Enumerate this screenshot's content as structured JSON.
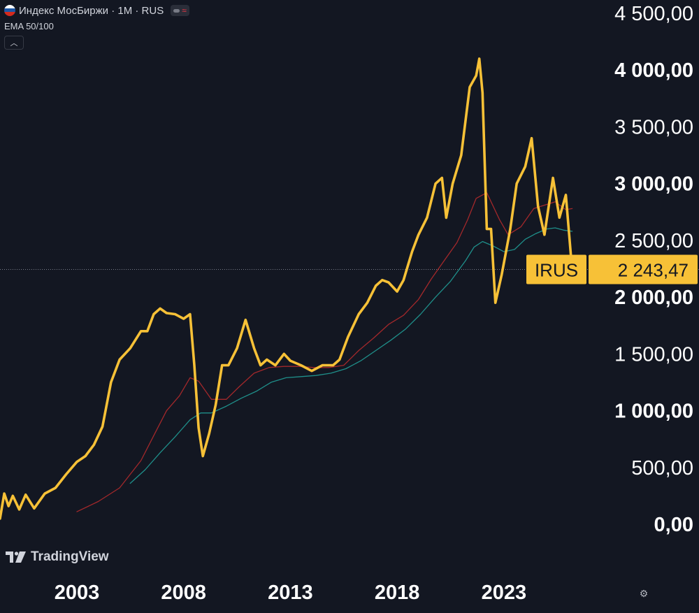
{
  "header": {
    "title": "Индекс МосБиржи · 1M · RUS",
    "indicator": "EMA 50/100",
    "collapse_icon": "chevron-up-icon"
  },
  "watermark": {
    "text": "TradingView"
  },
  "price_label": {
    "ticker": "IRUS",
    "value": "2 243,47"
  },
  "colors": {
    "background": "#131722",
    "price_line": "#f7c137",
    "ema50": "#a3282b",
    "ema100": "#1f8f8a",
    "label_bg": "#f7c137",
    "label_text": "#131722",
    "axis_text": "#ffffff"
  },
  "chart_data": {
    "type": "line",
    "title": "",
    "xlabel": "",
    "ylabel": "",
    "ylim": [
      0,
      4500
    ],
    "xlim": [
      1999.4,
      2026.9
    ],
    "x_ticks": [
      {
        "value": 2003,
        "label": "2003"
      },
      {
        "value": 2008,
        "label": "2008"
      },
      {
        "value": 2013,
        "label": "2013"
      },
      {
        "value": 2018,
        "label": "2018"
      },
      {
        "value": 2023,
        "label": "2023"
      }
    ],
    "y_ticks": [
      {
        "value": 4500,
        "label": "4 500,00"
      },
      {
        "value": 4000,
        "label": "4 000,00"
      },
      {
        "value": 3500,
        "label": "3 500,00"
      },
      {
        "value": 3000,
        "label": "3 000,00"
      },
      {
        "value": 2500,
        "label": "2 500,00"
      },
      {
        "value": 2000,
        "label": "2 000,00"
      },
      {
        "value": 1500,
        "label": "1 500,00"
      },
      {
        "value": 1000,
        "label": "1 000,00"
      },
      {
        "value": 500,
        "label": "500,00"
      },
      {
        "value": 0,
        "label": "0,00"
      }
    ],
    "current_price": 2243.47,
    "series": [
      {
        "role": "price",
        "x": [
          1999.4,
          1999.6,
          1999.8,
          2000.0,
          2000.3,
          2000.6,
          2001.0,
          2001.5,
          2002.0,
          2002.5,
          2003.0,
          2003.4,
          2003.8,
          2004.2,
          2004.6,
          2005.0,
          2005.5,
          2006.0,
          2006.3,
          2006.6,
          2006.9,
          2007.2,
          2007.6,
          2008.0,
          2008.3,
          2008.5,
          2008.7,
          2008.9,
          2009.2,
          2009.5,
          2009.8,
          2010.1,
          2010.5,
          2010.9,
          2011.3,
          2011.6,
          2011.9,
          2012.3,
          2012.7,
          2013.0,
          2013.5,
          2014.0,
          2014.5,
          2015.0,
          2015.3,
          2015.7,
          2016.2,
          2016.6,
          2017.0,
          2017.3,
          2017.6,
          2018.0,
          2018.3,
          2018.7,
          2019.0,
          2019.4,
          2019.8,
          2020.1,
          2020.3,
          2020.6,
          2021.0,
          2021.4,
          2021.7,
          2021.85,
          2022.0,
          2022.2,
          2022.4,
          2022.6,
          2022.9,
          2023.3,
          2023.6,
          2024.0,
          2024.3,
          2024.6,
          2024.9,
          2025.3,
          2025.6,
          2025.9,
          2026.2
        ],
        "y": [
          50,
          270,
          160,
          250,
          130,
          260,
          140,
          270,
          320,
          440,
          550,
          600,
          700,
          860,
          1250,
          1450,
          1550,
          1700,
          1700,
          1850,
          1900,
          1860,
          1850,
          1810,
          1850,
          1400,
          850,
          600,
          800,
          1050,
          1400,
          1400,
          1550,
          1800,
          1550,
          1400,
          1450,
          1400,
          1500,
          1440,
          1400,
          1350,
          1400,
          1400,
          1450,
          1650,
          1850,
          1950,
          2100,
          2150,
          2130,
          2050,
          2150,
          2400,
          2550,
          2700,
          3000,
          3050,
          2700,
          3000,
          3250,
          3850,
          3950,
          4100,
          3800,
          2600,
          2600,
          1950,
          2200,
          2600,
          3000,
          3150,
          3400,
          2800,
          2550,
          3050,
          2700,
          2900,
          2230
        ]
      },
      {
        "role": "ema50",
        "x": [
          2003.0,
          2004.0,
          2005.0,
          2006.0,
          2006.6,
          2007.2,
          2007.8,
          2008.3,
          2008.7,
          2009.3,
          2010.0,
          2010.6,
          2011.3,
          2012.0,
          2012.7,
          2013.4,
          2014.1,
          2014.8,
          2015.5,
          2016.2,
          2016.9,
          2017.6,
          2018.3,
          2019.0,
          2019.6,
          2020.2,
          2020.8,
          2021.3,
          2021.7,
          2022.2,
          2022.8,
          2023.2,
          2023.8,
          2024.4,
          2024.9,
          2025.4,
          2025.9,
          2026.2
        ],
        "y": [
          110,
          200,
          320,
          560,
          780,
          1000,
          1130,
          1290,
          1260,
          1100,
          1100,
          1210,
          1330,
          1380,
          1390,
          1390,
          1380,
          1380,
          1400,
          1530,
          1640,
          1760,
          1840,
          1980,
          2160,
          2320,
          2480,
          2680,
          2870,
          2920,
          2680,
          2550,
          2620,
          2780,
          2810,
          2840,
          2770,
          2780
        ]
      },
      {
        "role": "ema100",
        "x": [
          2005.5,
          2006.2,
          2006.9,
          2007.6,
          2008.3,
          2008.8,
          2009.3,
          2010.0,
          2010.7,
          2011.4,
          2012.1,
          2012.8,
          2013.5,
          2014.2,
          2014.9,
          2015.6,
          2016.3,
          2017.0,
          2017.7,
          2018.4,
          2019.1,
          2019.8,
          2020.5,
          2021.2,
          2021.6,
          2022.0,
          2022.5,
          2023.0,
          2023.5,
          2024.0,
          2024.5,
          2025.0,
          2025.4,
          2025.8,
          2026.2
        ],
        "y": [
          360,
          480,
          630,
          770,
          920,
          980,
          980,
          1040,
          1110,
          1170,
          1250,
          1290,
          1300,
          1310,
          1330,
          1370,
          1440,
          1530,
          1620,
          1720,
          1850,
          2000,
          2140,
          2320,
          2440,
          2490,
          2450,
          2400,
          2420,
          2510,
          2560,
          2600,
          2610,
          2590,
          2580
        ]
      }
    ]
  }
}
